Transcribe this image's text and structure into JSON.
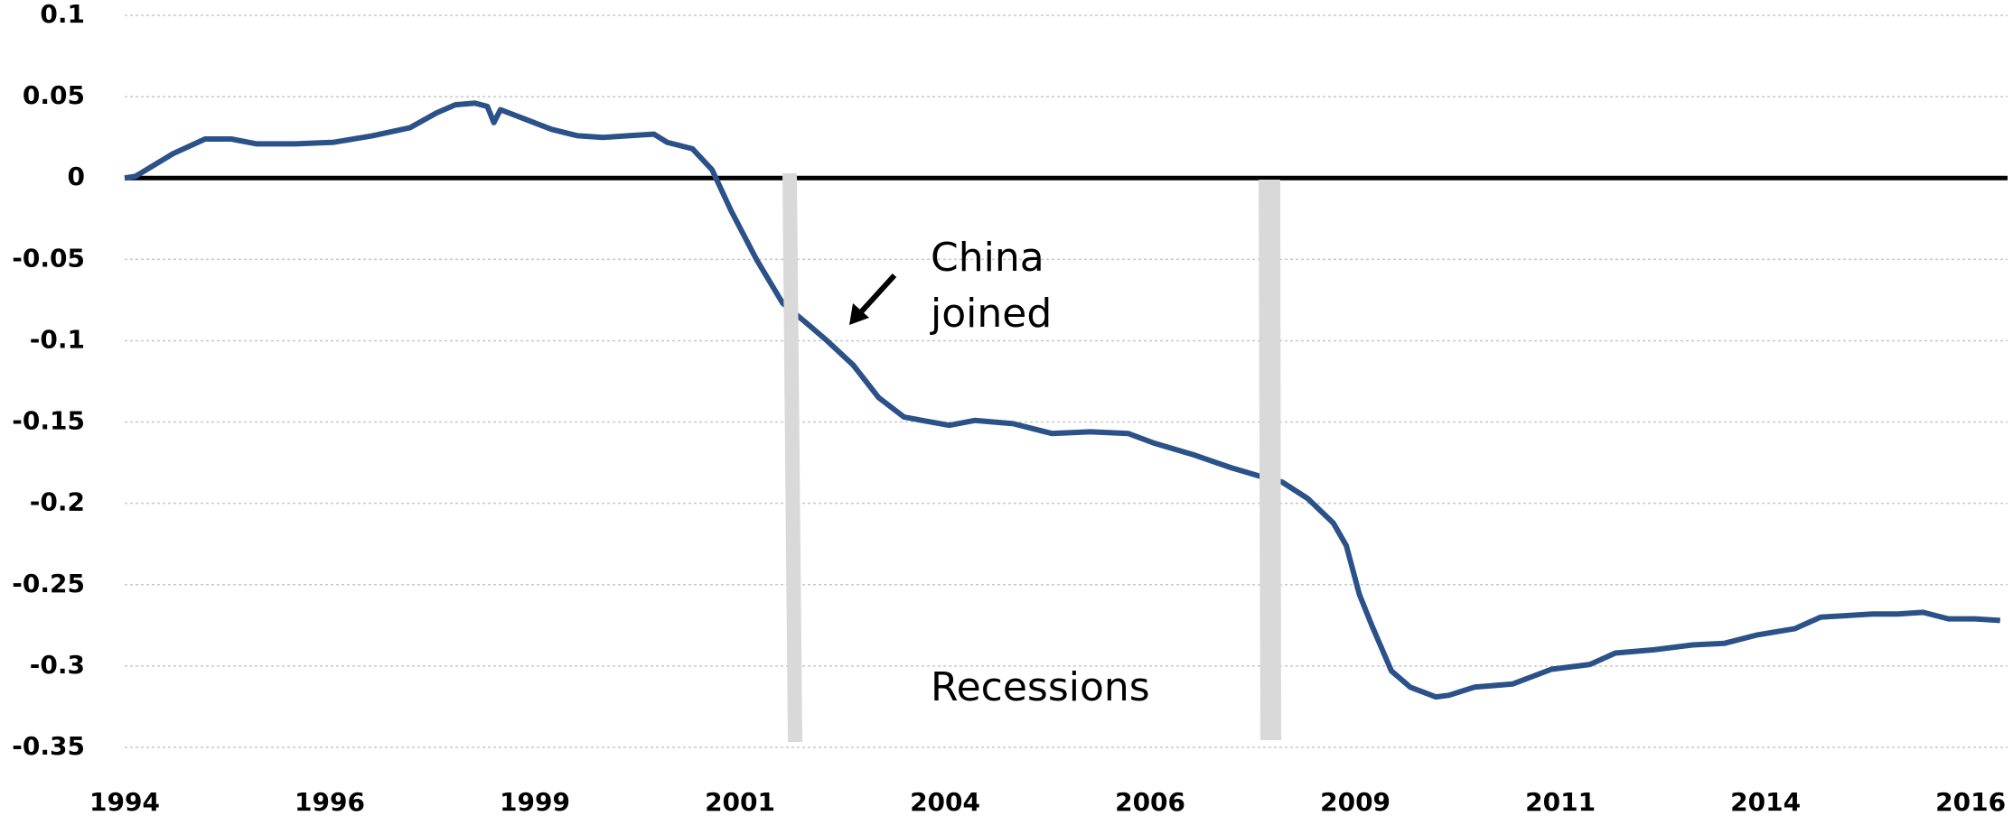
{
  "chart_data": {
    "type": "line",
    "x": [
      1994.0,
      1994.13,
      1994.36,
      1994.59,
      1994.98,
      1995.3,
      1995.61,
      1996.08,
      1996.55,
      1997.02,
      1997.48,
      1997.8,
      1998.03,
      1998.27,
      1998.42,
      1998.5,
      1998.58,
      1998.89,
      1999.2,
      1999.52,
      1999.83,
      2000.14,
      2000.45,
      2000.61,
      2000.92,
      2001.16,
      2001.39,
      2001.7,
      2002.02,
      2002.33,
      2002.56,
      2002.88,
      2003.19,
      2003.5,
      2004.05,
      2004.36,
      2004.83,
      2005.3,
      2005.77,
      2006.23,
      2006.55,
      2007.02,
      2007.48,
      2007.88,
      2008.11,
      2008.42,
      2008.73,
      2008.89,
      2009.05,
      2009.2,
      2009.44,
      2009.67,
      2009.98,
      2010.14,
      2010.45,
      2010.92,
      2011.39,
      2011.86,
      2012.17,
      2012.64,
      2013.11,
      2013.5,
      2013.89,
      2014.36,
      2014.67,
      2015.3,
      2015.61,
      2015.92,
      2016.23,
      2016.55,
      2016.86
    ],
    "series": [
      {
        "color": "#2b5189",
        "values": [
          0,
          0.001,
          0.008,
          0.015,
          0.024,
          0.024,
          0.021,
          0.021,
          0.022,
          0.026,
          0.031,
          0.04,
          0.045,
          0.046,
          0.044,
          0.034,
          0.042,
          0.036,
          0.03,
          0.026,
          0.025,
          0.026,
          0.027,
          0.022,
          0.018,
          0.005,
          -0.02,
          -0.05,
          -0.077,
          -0.09,
          -0.1,
          -0.115,
          -0.135,
          -0.147,
          -0.152,
          -0.149,
          -0.151,
          -0.157,
          -0.156,
          -0.157,
          -0.163,
          -0.17,
          -0.178,
          -0.184,
          -0.187,
          -0.197,
          -0.212,
          -0.226,
          -0.256,
          -0.275,
          -0.303,
          -0.313,
          -0.319,
          -0.318,
          -0.313,
          -0.311,
          -0.302,
          -0.299,
          -0.292,
          -0.29,
          -0.287,
          -0.286,
          -0.281,
          -0.277,
          -0.27,
          -0.268,
          -0.268,
          -0.267,
          -0.271,
          -0.271,
          -0.272
        ]
      }
    ],
    "xlim": [
      1994,
      2016.95
    ],
    "xticks": [
      1994,
      {
        "value": 1996.5,
        "label": "1996"
      },
      1999,
      {
        "value": 2001.5,
        "label": "2001"
      },
      2004,
      {
        "value": 2006.5,
        "label": "2006"
      },
      2009,
      {
        "value": 2011.5,
        "label": "2011"
      },
      2014,
      {
        "value": 2016.5,
        "label": "2016"
      }
    ],
    "ylim": [
      -0.35,
      0.1
    ],
    "yticks": [
      0.1,
      0.05,
      0,
      -0.05,
      -0.1,
      -0.15,
      -0.2,
      -0.25,
      -0.3,
      -0.35
    ],
    "grid": true,
    "annotations": [
      {
        "lines": [
          "China",
          "joined"
        ]
      },
      {
        "lines": [
          "Recessions"
        ]
      }
    ]
  }
}
